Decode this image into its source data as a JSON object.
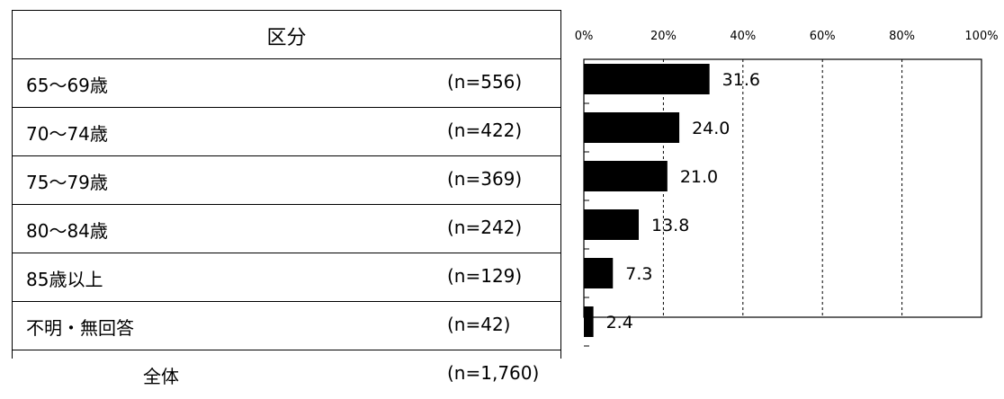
{
  "table": {
    "header": "区分",
    "total_label": "全体",
    "total_n": "(n=1,760)"
  },
  "chart_data": {
    "type": "bar",
    "orientation": "horizontal",
    "categories": [
      "65～69歳",
      "70～74歳",
      "75～79歳",
      "80～84歳",
      "85歳以上",
      "不明・無回答"
    ],
    "n_labels": [
      "(n=556)",
      "(n=422)",
      "(n=369)",
      "(n=242)",
      "(n=129)",
      "(n=42)"
    ],
    "values": [
      31.6,
      24.0,
      21.0,
      13.8,
      7.3,
      2.4
    ],
    "value_labels": [
      "31.6",
      "24.0",
      "21.0",
      "13.8",
      "7.3",
      "2.4"
    ],
    "xlim": [
      0,
      100
    ],
    "x_ticks": [
      "0%",
      "20%",
      "40%",
      "60%",
      "80%",
      "100%"
    ],
    "gridlines": "dashed",
    "bar_color": "#000000"
  }
}
